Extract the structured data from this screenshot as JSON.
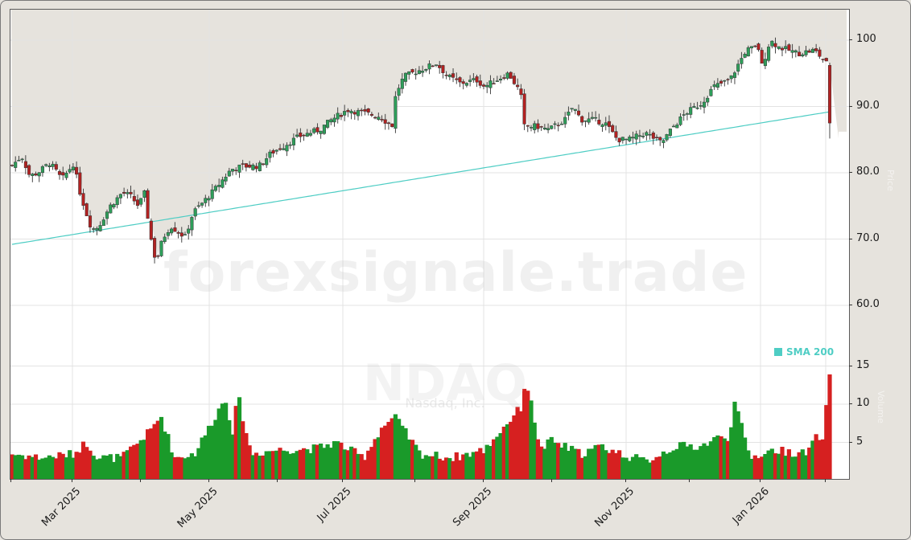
{
  "chart": {
    "ticker_watermark": "NDAQ",
    "company_watermark": "Nasdaq, Inc.",
    "site_watermark": "forexsignale.trade",
    "legend": {
      "label": "SMA 200",
      "color": "#4ecdc4"
    },
    "price_axis_label": "Price",
    "volume_axis_label": "Volume",
    "volume_axis_multiplier": "1e6",
    "colors": {
      "up": "#1a9a2a",
      "down": "#d62020",
      "candle_up": "#2e9e5a",
      "candle_down": "#b22222",
      "sma": "#4ecdc4",
      "bg_above_price": "#e6e3dd",
      "grid": "#e3e3e3"
    }
  },
  "chart_data": {
    "type": "candlestick",
    "title": "",
    "xlabel": "",
    "ylabel": "Price",
    "ylim": [
      55,
      104
    ],
    "y_ticks": [
      "100",
      "90.0",
      "80.0",
      "70.0",
      "60.0"
    ],
    "y_tick_values": [
      100,
      90,
      80,
      70,
      60
    ],
    "volume_ylim": [
      0,
      16
    ],
    "volume_ticks": [
      "15",
      "10",
      "5"
    ],
    "volume_tick_values": [
      15,
      10,
      5
    ],
    "x_ticks": [
      "Mar 2025",
      "May 2025",
      "Jul 2025",
      "Sep 2025",
      "Nov 2025",
      "Jan 2026"
    ],
    "grid": true,
    "legend_position": "lower right of price panel",
    "series": [
      {
        "name": "SMA 200",
        "start": 69.2,
        "end": 89.2
      }
    ],
    "price_keypoints": [
      [
        12,
        81
      ],
      [
        25,
        82.5
      ],
      [
        35,
        79.5
      ],
      [
        45,
        80
      ],
      [
        60,
        81.5
      ],
      [
        75,
        79
      ],
      [
        90,
        81.5
      ],
      [
        95,
        78
      ],
      [
        105,
        74
      ],
      [
        112,
        71.5
      ],
      [
        120,
        71.8
      ],
      [
        135,
        75
      ],
      [
        150,
        77
      ],
      [
        160,
        76.5
      ],
      [
        170,
        75
      ],
      [
        178,
        77
      ],
      [
        182,
        73
      ],
      [
        187,
        69
      ],
      [
        192,
        66.5
      ],
      [
        200,
        70
      ],
      [
        210,
        72
      ],
      [
        220,
        71
      ],
      [
        228,
        70.3
      ],
      [
        238,
        74
      ],
      [
        250,
        75.5
      ],
      [
        265,
        77.5
      ],
      [
        285,
        80.5
      ],
      [
        300,
        81
      ],
      [
        320,
        81
      ],
      [
        335,
        83
      ],
      [
        350,
        84
      ],
      [
        370,
        85.5
      ],
      [
        395,
        86.5
      ],
      [
        410,
        88
      ],
      [
        430,
        89.5
      ],
      [
        450,
        89
      ],
      [
        470,
        88.5
      ],
      [
        485,
        87
      ],
      [
        490,
        92
      ],
      [
        500,
        94.5
      ],
      [
        520,
        95.5
      ],
      [
        540,
        96.5
      ],
      [
        555,
        94.5
      ],
      [
        570,
        93.5
      ],
      [
        590,
        94
      ],
      [
        600,
        93
      ],
      [
        615,
        94
      ],
      [
        630,
        95
      ],
      [
        645,
        92
      ],
      [
        648,
        87
      ],
      [
        665,
        87
      ],
      [
        680,
        86.5
      ],
      [
        700,
        88
      ],
      [
        710,
        90
      ],
      [
        720,
        88
      ],
      [
        735,
        88
      ],
      [
        750,
        87.5
      ],
      [
        765,
        85
      ],
      [
        780,
        85
      ],
      [
        800,
        86
      ],
      [
        820,
        84.5
      ],
      [
        835,
        87
      ],
      [
        850,
        89
      ],
      [
        870,
        90.5
      ],
      [
        885,
        93
      ],
      [
        905,
        94
      ],
      [
        925,
        98.5
      ],
      [
        940,
        99
      ],
      [
        945,
        96
      ],
      [
        955,
        100
      ],
      [
        965,
        99
      ],
      [
        990,
        98
      ],
      [
        1010,
        98.5
      ],
      [
        1025,
        96.5
      ],
      [
        1030,
        87.5
      ]
    ],
    "volume_keypoints_millions": [
      [
        12,
        3.5
      ],
      [
        50,
        3
      ],
      [
        90,
        3.5
      ],
      [
        105,
        5
      ],
      [
        120,
        3
      ],
      [
        150,
        3
      ],
      [
        185,
        6.5
      ],
      [
        198,
        8.5
      ],
      [
        215,
        3
      ],
      [
        240,
        3.5
      ],
      [
        278,
        10.8
      ],
      [
        287,
        6.5
      ],
      [
        294,
        11
      ],
      [
        310,
        3.5
      ],
      [
        340,
        4
      ],
      [
        390,
        4.2
      ],
      [
        416,
        5
      ],
      [
        450,
        3
      ],
      [
        473,
        7
      ],
      [
        489,
        8.3
      ],
      [
        520,
        3.5
      ],
      [
        560,
        3
      ],
      [
        600,
        4
      ],
      [
        647,
        9.8
      ],
      [
        651,
        13.5
      ],
      [
        670,
        4
      ],
      [
        683,
        5.2
      ],
      [
        720,
        3.5
      ],
      [
        745,
        4.5
      ],
      [
        770,
        3.5
      ],
      [
        800,
        2.5
      ],
      [
        838,
        4.5
      ],
      [
        870,
        4.5
      ],
      [
        887,
        5.5
      ],
      [
        905,
        5.8
      ],
      [
        910,
        10.5
      ],
      [
        930,
        3
      ],
      [
        960,
        4
      ],
      [
        1000,
        3.5
      ],
      [
        1015,
        6
      ],
      [
        1022,
        4.8
      ],
      [
        1028,
        14.5
      ]
    ]
  }
}
